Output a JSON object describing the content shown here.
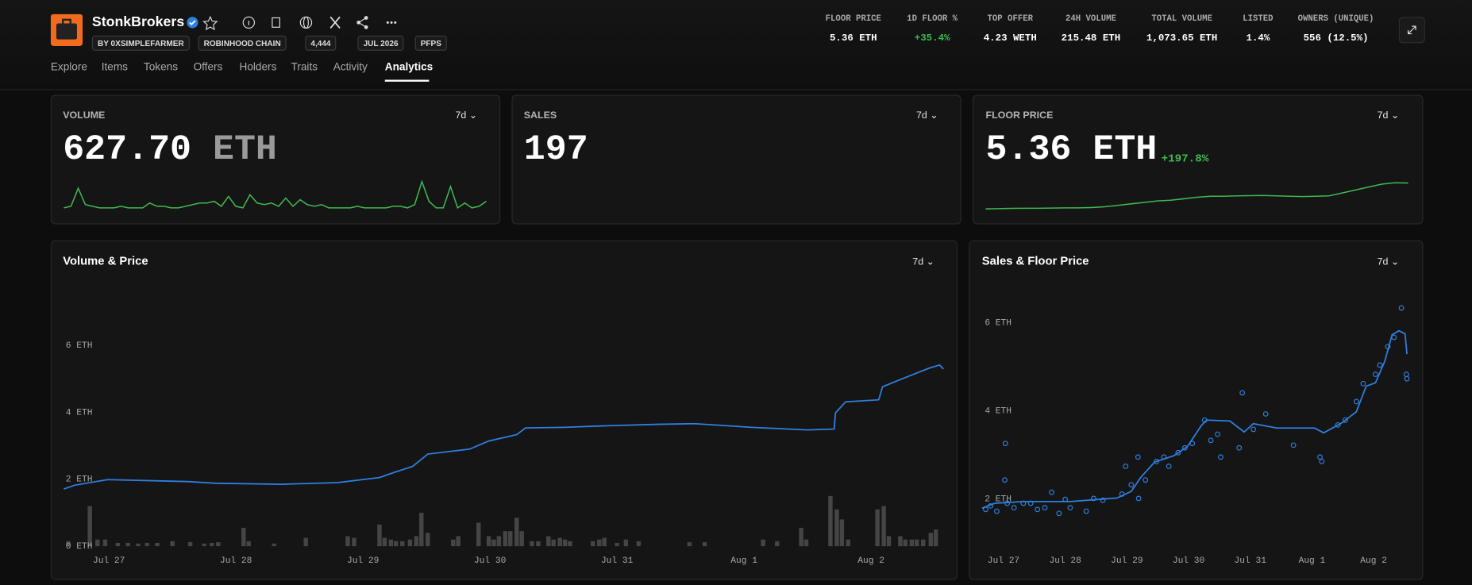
{
  "header": {
    "title": "StonkBrokers",
    "badges": [
      "BY 0XSIMPLEFARMER",
      "ROBINHOOD CHAIN",
      "4,444",
      "JUL 2026",
      "PFPS"
    ],
    "stats": [
      {
        "label": "FLOOR PRICE",
        "value": "5.36 ETH"
      },
      {
        "label": "1D FLOOR %",
        "value": "+35.4%"
      },
      {
        "label": "TOP OFFER",
        "value": "4.23 WETH"
      },
      {
        "label": "24H VOLUME",
        "value": "215.48 ETH"
      },
      {
        "label": "TOTAL VOLUME",
        "value": "1,073.65 ETH"
      },
      {
        "label": "LISTED",
        "value": "1.4%"
      },
      {
        "label": "OWNERS (UNIQUE)",
        "value": "556 (12.5%)"
      }
    ]
  },
  "tabs": [
    "Explore",
    "Items",
    "Tokens",
    "Offers",
    "Holders",
    "Traits",
    "Activity",
    "Analytics"
  ],
  "cards": [
    {
      "label": "VOLUME",
      "period": "7d",
      "value": "627.70",
      "unit": "ETH",
      "sparkline": {
        "color": "#3fb950",
        "ylim": [
          0,
          20
        ],
        "values": [
          2,
          3,
          14,
          4,
          3,
          2,
          2,
          2,
          3,
          2,
          2,
          2,
          5,
          3,
          3,
          2,
          2,
          3,
          4,
          5,
          5,
          6,
          3,
          9,
          3,
          2,
          10,
          5,
          4,
          5,
          3,
          8,
          3,
          7,
          4,
          3,
          4,
          2,
          2,
          2,
          2,
          3,
          2,
          2,
          2,
          2,
          3,
          3,
          2,
          4,
          18,
          6,
          2,
          2,
          15,
          2,
          5,
          2,
          3,
          6
        ]
      }
    },
    {
      "label": "SALES",
      "period": "7d",
      "value": "197"
    },
    {
      "label": "FLOOR PRICE",
      "period": "7d",
      "value": "5.36",
      "unit": "ETH",
      "change": "+197.8%",
      "sparkline": {
        "color": "#3fb950",
        "ylim": [
          1.5,
          6
        ],
        "values": [
          1.81,
          1.85,
          1.88,
          1.9,
          1.9,
          1.92,
          1.95,
          1.95,
          2.0,
          2.1,
          2.3,
          2.5,
          2.7,
          2.9,
          3.0,
          3.2,
          3.4,
          3.55,
          3.55,
          3.6,
          3.62,
          3.65,
          3.6,
          3.55,
          3.5,
          3.55,
          3.6,
          4.0,
          4.4,
          4.8,
          5.2,
          5.4,
          5.36
        ]
      }
    }
  ],
  "chart_data": [
    {
      "type": "combo",
      "title": "Volume & Price",
      "period": "7d",
      "xlim": [
        -0.355,
        6.57
      ],
      "ylim": [
        0,
        7.9
      ],
      "xticks": [
        {
          "value": 0,
          "label": "Jul 27"
        },
        {
          "value": 1,
          "label": "Jul 28"
        },
        {
          "value": 2,
          "label": "Jul 29"
        },
        {
          "value": 3,
          "label": "Jul 30"
        },
        {
          "value": 4,
          "label": "Jul 31"
        },
        {
          "value": 5,
          "label": "Aug 1"
        },
        {
          "value": 6,
          "label": "Aug 2"
        }
      ],
      "yticks": [
        {
          "value": 0,
          "label": "0 ETH"
        },
        {
          "value": 2,
          "label": "2 ETH"
        },
        {
          "value": 4,
          "label": "4 ETH"
        },
        {
          "value": 6,
          "label": "6 ETH"
        }
      ],
      "series": [
        {
          "type": "bar",
          "color": "#454545",
          "x": [
            -0.32,
            -0.15,
            -0.09,
            -0.03,
            0.07,
            0.15,
            0.23,
            0.3,
            0.38,
            0.5,
            0.64,
            0.75,
            0.81,
            0.86,
            1.06,
            1.1,
            1.3,
            1.55,
            1.88,
            1.93,
            2.13,
            2.17,
            2.22,
            2.26,
            2.31,
            2.37,
            2.42,
            2.46,
            2.51,
            2.71,
            2.75,
            2.91,
            2.99,
            3.03,
            3.07,
            3.12,
            3.16,
            3.21,
            3.25,
            3.33,
            3.38,
            3.46,
            3.5,
            3.55,
            3.59,
            3.63,
            3.81,
            3.86,
            3.9,
            4.0,
            4.07,
            4.17,
            4.57,
            4.69,
            5.15,
            5.26,
            5.45,
            5.49,
            5.68,
            5.73,
            5.77,
            5.82,
            6.05,
            6.1,
            6.14,
            6.23,
            6.27,
            6.32,
            6.36,
            6.41,
            6.47,
            6.51
          ],
          "values": [
            0.15,
            1.2,
            0.2,
            0.2,
            0.1,
            0.1,
            0.08,
            0.1,
            0.1,
            0.15,
            0.12,
            0.08,
            0.1,
            0.12,
            0.55,
            0.15,
            0.08,
            0.25,
            0.3,
            0.25,
            0.65,
            0.25,
            0.2,
            0.15,
            0.15,
            0.2,
            0.3,
            1.0,
            0.4,
            0.2,
            0.3,
            0.7,
            0.3,
            0.2,
            0.3,
            0.45,
            0.45,
            0.85,
            0.45,
            0.15,
            0.15,
            0.3,
            0.2,
            0.25,
            0.2,
            0.15,
            0.15,
            0.2,
            0.25,
            0.1,
            0.2,
            0.15,
            0.12,
            0.12,
            0.2,
            0.15,
            0.55,
            0.2,
            1.5,
            1.1,
            0.8,
            0.2,
            1.1,
            1.2,
            0.3,
            0.3,
            0.2,
            0.2,
            0.2,
            0.2,
            0.4,
            0.5
          ]
        },
        {
          "type": "line",
          "color": "#2f7fe0",
          "x": [
            -0.355,
            -0.27,
            -0.01,
            0.62,
            0.84,
            1.36,
            1.8,
            2.13,
            2.25,
            2.39,
            2.51,
            2.84,
            2.99,
            3.21,
            3.28,
            3.58,
            3.95,
            4.32,
            4.61,
            5.06,
            5.5,
            5.71,
            5.72,
            5.8,
            6.06,
            6.09,
            6.24,
            6.46,
            6.54,
            6.57
          ],
          "values": [
            1.71,
            1.82,
            1.99,
            1.93,
            1.88,
            1.85,
            1.9,
            2.05,
            2.21,
            2.38,
            2.75,
            2.9,
            3.14,
            3.33,
            3.53,
            3.55,
            3.6,
            3.64,
            3.66,
            3.55,
            3.47,
            3.5,
            3.98,
            4.31,
            4.37,
            4.76,
            4.99,
            5.32,
            5.41,
            5.29
          ]
        }
      ]
    },
    {
      "type": "combo",
      "title": "Sales & Floor Price",
      "period": "7d",
      "xlim": [
        -0.35,
        6.59
      ],
      "ylim": [
        1.5,
        6.725
      ],
      "xticks": [
        {
          "value": 0,
          "label": "Jul 27"
        },
        {
          "value": 1,
          "label": "Jul 28"
        },
        {
          "value": 2,
          "label": "Jul 29"
        },
        {
          "value": 3,
          "label": "Jul 30"
        },
        {
          "value": 4,
          "label": "Jul 31"
        },
        {
          "value": 5,
          "label": "Aug 1"
        },
        {
          "value": 6,
          "label": "Aug 2"
        }
      ],
      "yticks": [
        {
          "value": 2,
          "label": "2 ETH"
        },
        {
          "value": 4,
          "label": "4 ETH"
        },
        {
          "value": 6,
          "label": "6 ETH"
        }
      ],
      "series": [
        {
          "type": "line",
          "color": "#2f7fe0",
          "x": [
            -0.35,
            -0.14,
            0.32,
            1.08,
            1.84,
            2.07,
            2.22,
            2.45,
            2.76,
            2.98,
            3.21,
            3.29,
            3.67,
            3.9,
            4.05,
            4.43,
            5.04,
            5.19,
            5.49,
            5.72,
            5.88,
            6.03,
            6.18,
            6.3,
            6.41,
            6.51,
            6.54
          ],
          "values": [
            1.79,
            1.9,
            1.94,
            1.94,
            2.02,
            2.17,
            2.48,
            2.84,
            2.98,
            3.19,
            3.67,
            3.79,
            3.77,
            3.52,
            3.71,
            3.61,
            3.61,
            3.5,
            3.73,
            3.98,
            4.56,
            4.64,
            5.13,
            5.73,
            5.82,
            5.75,
            5.29
          ]
        },
        {
          "type": "scatter",
          "color": "#2f7fe0",
          "x": [
            -0.29,
            -0.21,
            -0.11,
            0.02,
            0.06,
            0.03,
            0.17,
            0.32,
            0.44,
            0.55,
            0.67,
            0.78,
            0.9,
            1.0,
            1.08,
            1.34,
            1.46,
            1.61,
            1.92,
            1.98,
            2.07,
            2.18,
            2.19,
            2.3,
            2.48,
            2.6,
            2.68,
            2.83,
            2.94,
            3.06,
            3.26,
            3.36,
            3.47,
            3.52,
            3.82,
            3.87,
            4.05,
            4.25,
            4.7,
            5.13,
            5.16,
            5.42,
            5.54,
            5.72,
            5.83,
            6.03,
            6.1,
            6.23,
            6.33,
            6.45,
            6.53,
            6.54
          ],
          "values": [
            1.76,
            1.84,
            1.72,
            2.43,
            1.9,
            3.26,
            1.8,
            1.9,
            1.9,
            1.76,
            1.8,
            2.15,
            1.67,
            1.99,
            1.8,
            1.72,
            2.01,
            1.97,
            2.11,
            2.74,
            2.32,
            2.95,
            2.01,
            2.43,
            2.85,
            2.95,
            2.74,
            3.05,
            3.16,
            3.26,
            3.79,
            3.33,
            3.47,
            2.95,
            3.16,
            4.41,
            3.58,
            3.93,
            3.22,
            2.95,
            2.85,
            3.68,
            3.79,
            4.21,
            4.62,
            4.83,
            5.04,
            5.46,
            5.67,
            6.34,
            4.83,
            4.73
          ]
        }
      ]
    }
  ]
}
